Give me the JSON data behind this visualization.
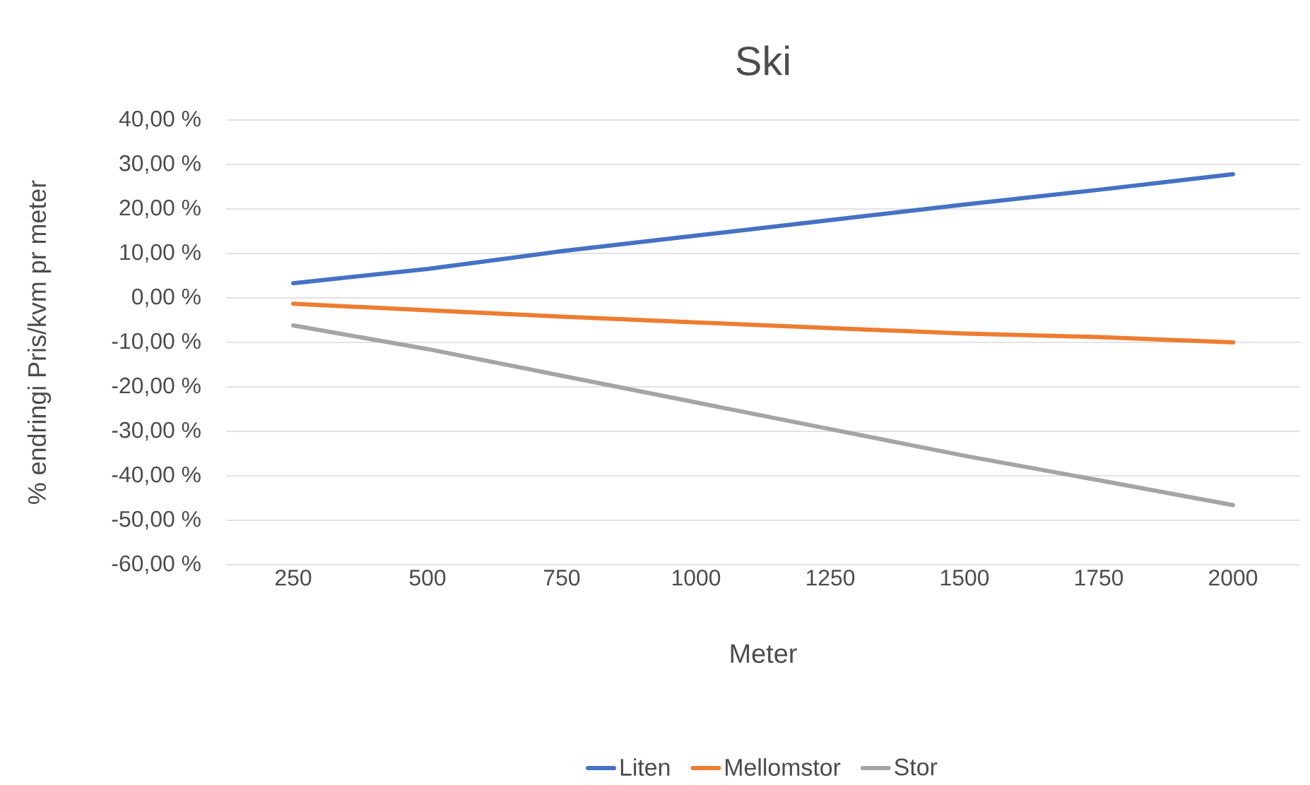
{
  "chart_data": {
    "type": "line",
    "title": "Ski",
    "xlabel": "Meter",
    "ylabel": "% endringi Pris/kvm pr meter",
    "categories": [
      "250",
      "500",
      "750",
      "1000",
      "1250",
      "1500",
      "1750",
      "2000"
    ],
    "series": [
      {
        "name": "Liten",
        "color": "#4472c4",
        "values": [
          3.3,
          6.5,
          10.5,
          14,
          17.5,
          21,
          24.3,
          27.8
        ]
      },
      {
        "name": "Mellomstor",
        "color": "#ed7d31",
        "values": [
          -1.3,
          -2.8,
          -4.2,
          -5.5,
          -6.8,
          -8,
          -8.8,
          -10
        ]
      },
      {
        "name": "Stor",
        "color": "#a5a5a5",
        "values": [
          -6.2,
          -11.5,
          -17.5,
          -23.5,
          -29.5,
          -35.5,
          -41,
          -46.6
        ]
      }
    ],
    "ylim": [
      -60,
      40
    ],
    "yticks": [
      {
        "value": -60,
        "label": "-60,00 %"
      },
      {
        "value": -50,
        "label": "-50,00 %"
      },
      {
        "value": -40,
        "label": "-40,00 %"
      },
      {
        "value": -30,
        "label": "-30,00 %"
      },
      {
        "value": -20,
        "label": "-20,00 %"
      },
      {
        "value": -10,
        "label": "-10,00 %"
      },
      {
        "value": 0,
        "label": "0,00 %"
      },
      {
        "value": 10,
        "label": "10,00 %"
      },
      {
        "value": 20,
        "label": "20,00 %"
      },
      {
        "value": 30,
        "label": "30,00 %"
      },
      {
        "value": 40,
        "label": "40,00 %"
      }
    ],
    "grid": "y",
    "legend": "bottom",
    "marker": "none",
    "line_style": "solid"
  }
}
